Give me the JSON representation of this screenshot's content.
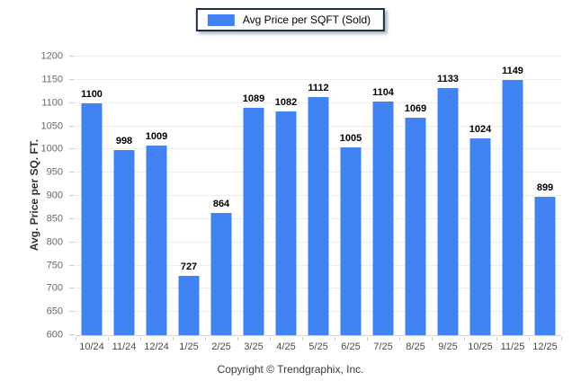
{
  "legend": {
    "label": "Avg Price per SQFT (Sold)"
  },
  "y_axis": {
    "title": "Avg. Price per SQ. FT."
  },
  "footer": {
    "copyright": "Copyright © Trendgraphix, Inc."
  },
  "colors": {
    "bar": "#4183f3",
    "grid": "#ededed",
    "baseline": "#d4d4d4",
    "legend_border": "#1c2c4a",
    "value_text": "#000000",
    "axis_text": "#4a4a4a",
    "ytick_text": "#6a6a6a"
  },
  "chart_data": {
    "type": "bar",
    "title": "",
    "xlabel": "",
    "ylabel": "Avg. Price per SQ. FT.",
    "categories": [
      "10/24",
      "11/24",
      "12/24",
      "1/25",
      "2/25",
      "3/25",
      "4/25",
      "5/25",
      "6/25",
      "7/25",
      "8/25",
      "9/25",
      "10/25",
      "11/25",
      "12/25"
    ],
    "series": [
      {
        "name": "Avg Price per SQFT (Sold)",
        "values": [
          1100,
          998,
          1009,
          727,
          864,
          1089,
          1082,
          1112,
          1005,
          1104,
          1069,
          1133,
          1024,
          1149,
          899
        ]
      }
    ],
    "ylim": [
      600,
      1200
    ],
    "ytick_step": 50,
    "grid": true,
    "legend_position": "top-center",
    "value_labels": true
  }
}
